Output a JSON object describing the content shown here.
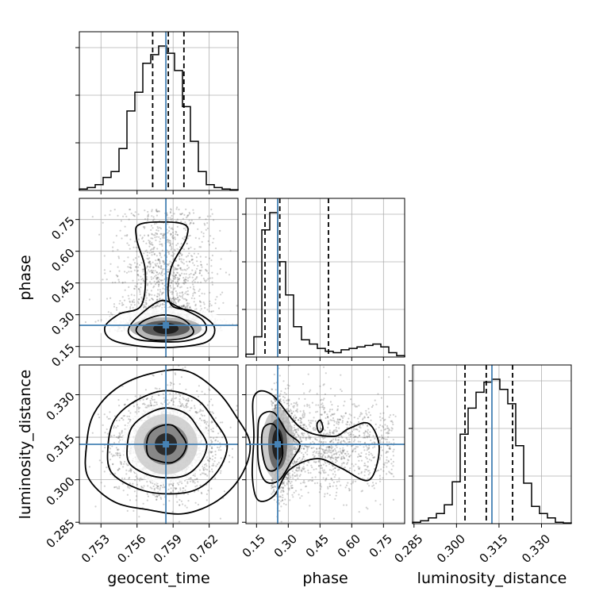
{
  "chart_data": {
    "type": "corner",
    "parameters": [
      "geocent_time",
      "phase",
      "luminosity_distance"
    ],
    "truths": {
      "geocent_time": 0.7584,
      "phase": 0.25,
      "luminosity_distance": 0.3125
    },
    "truth_color": "#4682b4",
    "axis_ranges": {
      "geocent_time": [
        0.7512,
        0.7644
      ],
      "phase": [
        0.1,
        0.85
      ],
      "luminosity_distance": [
        0.2845,
        0.3405
      ]
    },
    "ticks": {
      "geocent_time": {
        "values": [
          0.753,
          0.756,
          0.759,
          0.762
        ],
        "labels": [
          "0.753",
          "0.756",
          "0.759",
          "0.762"
        ]
      },
      "phase": {
        "values": [
          0.15,
          0.3,
          0.45,
          0.6,
          0.75
        ],
        "labels": [
          "0.15",
          "0.30",
          "0.45",
          "0.60",
          "0.75"
        ]
      },
      "luminosity_distance": {
        "values": [
          0.285,
          0.3,
          0.315,
          0.33
        ],
        "labels": [
          "0.285",
          "0.300",
          "0.315",
          "0.330"
        ]
      }
    },
    "histograms": {
      "geocent_time": {
        "edges_start": 0.7512,
        "bin_width": 0.00066,
        "values": [
          0.01,
          0.02,
          0.04,
          0.09,
          0.13,
          0.29,
          0.55,
          0.68,
          0.88,
          0.94,
          1.0,
          0.95,
          0.83,
          0.58,
          0.34,
          0.13,
          0.04,
          0.02,
          0.01,
          0.005
        ],
        "quantiles": [
          0.7573,
          0.7586,
          0.7599
        ]
      },
      "phase": {
        "edges_start": 0.1,
        "bin_width": 0.0375,
        "values": [
          0.02,
          0.14,
          0.88,
          1.0,
          0.66,
          0.43,
          0.21,
          0.12,
          0.09,
          0.06,
          0.04,
          0.03,
          0.05,
          0.06,
          0.07,
          0.08,
          0.09,
          0.07,
          0.03,
          0.01
        ],
        "quantiles": [
          0.19,
          0.26,
          0.49
        ]
      },
      "luminosity_distance": {
        "edges_start": 0.2845,
        "bin_width": 0.0028,
        "values": [
          0.01,
          0.02,
          0.04,
          0.07,
          0.13,
          0.29,
          0.62,
          0.8,
          0.91,
          0.98,
          1.0,
          0.93,
          0.83,
          0.54,
          0.28,
          0.12,
          0.07,
          0.04,
          0.01,
          0.005
        ],
        "quantiles": [
          0.303,
          0.3105,
          0.3198
        ]
      }
    },
    "2d_distributions": [
      {
        "x": "geocent_time",
        "y": "phase",
        "center": [
          0.7584,
          0.25
        ],
        "shape": "peaked-with-upper-lobe"
      },
      {
        "x": "geocent_time",
        "y": "luminosity_distance",
        "center": [
          0.7584,
          0.3125
        ],
        "shape": "gaussian"
      },
      {
        "x": "phase",
        "y": "luminosity_distance",
        "center": [
          0.25,
          0.3125
        ],
        "shape": "elongated-right-tail"
      }
    ]
  },
  "labels": {
    "geocent_time": "geocent_time",
    "phase": "phase",
    "luminosity_distance": "luminosity_distance"
  }
}
